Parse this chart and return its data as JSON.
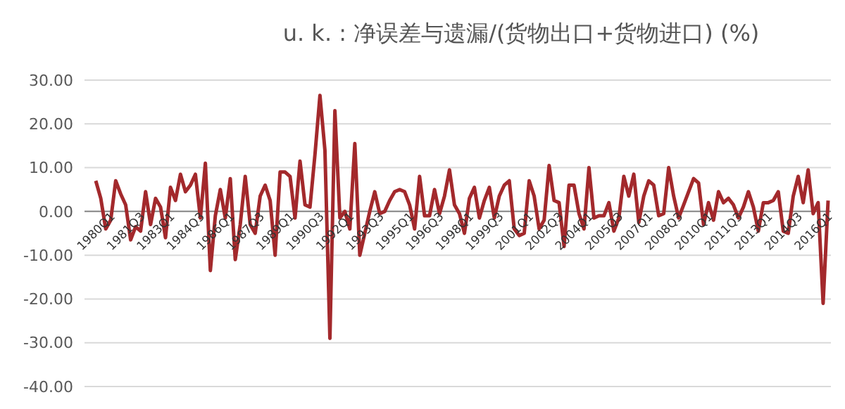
{
  "chart_data": {
    "type": "line",
    "title": "u. k. : 净误差与遗漏/(货物出口+货物进口) (%)",
    "categories": [
      "1980Q1",
      null,
      null,
      null,
      null,
      null,
      "1981Q3",
      null,
      null,
      null,
      null,
      null,
      "1983Q1",
      null,
      null,
      null,
      null,
      null,
      "1984Q3",
      null,
      null,
      null,
      null,
      null,
      "1986Q1",
      null,
      null,
      null,
      null,
      null,
      "1987Q3",
      null,
      null,
      null,
      null,
      null,
      "1989Q1",
      null,
      null,
      null,
      null,
      null,
      "1990Q3",
      null,
      null,
      null,
      null,
      null,
      "1992Q1",
      null,
      null,
      null,
      null,
      null,
      "1993Q3",
      null,
      null,
      null,
      null,
      null,
      "1995Q1",
      null,
      null,
      null,
      null,
      null,
      "1996Q3",
      null,
      null,
      null,
      null,
      null,
      "1998Q1",
      null,
      null,
      null,
      null,
      null,
      "1999Q3",
      null,
      null,
      null,
      null,
      null,
      "2001Q1",
      null,
      null,
      null,
      null,
      null,
      "2002Q3",
      null,
      null,
      null,
      null,
      null,
      "2004Q1",
      null,
      null,
      null,
      null,
      null,
      "2005Q3",
      null,
      null,
      null,
      null,
      null,
      "2007Q1",
      null,
      null,
      null,
      null,
      null,
      "2008Q3",
      null,
      null,
      null,
      null,
      null,
      "2010Q1",
      null,
      null,
      null,
      null,
      null,
      "2011Q3",
      null,
      null,
      null,
      null,
      null,
      "2013Q1",
      null,
      null,
      null,
      null,
      null,
      "2014Q3",
      null,
      null,
      null,
      null,
      null,
      "2016Q1",
      null,
      null,
      null
    ],
    "series": [
      {
        "color": "#a3292c",
        "values": [
          7,
          3,
          -4,
          -2,
          7,
          4,
          1.5,
          -6.5,
          -3.5,
          -4.5,
          4.5,
          -3,
          3,
          1,
          -6,
          5.5,
          2.5,
          8.5,
          4.5,
          6,
          8.5,
          -1.5,
          11,
          -13.5,
          -1,
          5,
          -1.5,
          7.5,
          -11,
          -3,
          8,
          -3,
          -5,
          3.5,
          6,
          2.5,
          -10,
          9,
          9,
          8,
          -1.5,
          11.5,
          1.5,
          1,
          13,
          26.5,
          14,
          -29,
          23,
          -1.5,
          0,
          -4,
          15.5,
          -10,
          -5,
          0,
          4.5,
          -0.5,
          0,
          2.5,
          4.5,
          5,
          4.5,
          1.5,
          -4,
          8,
          -1,
          -1,
          5,
          -0.5,
          3.5,
          9.5,
          1.5,
          -0.5,
          -5,
          3,
          5.5,
          -1.5,
          2.5,
          5.5,
          -1.5,
          3.5,
          6,
          7,
          -4,
          -5.5,
          -5,
          7,
          3.5,
          -4,
          -2,
          10.5,
          2.5,
          2,
          -8,
          6,
          6,
          -0.5,
          -4,
          10,
          -1.5,
          -1,
          -1,
          2,
          -4.5,
          -1.5,
          8,
          3.5,
          8.5,
          -2.5,
          3.5,
          7,
          6,
          -1,
          -0.5,
          10,
          3.5,
          -1.5,
          1.5,
          4.5,
          7.5,
          6.5,
          -3,
          2,
          -2,
          4.5,
          2,
          3,
          1.5,
          -1.5,
          1,
          4.5,
          1,
          -4.5,
          2,
          2,
          2.5,
          4.5,
          -4.5,
          -5,
          3.5,
          8,
          2,
          9.5,
          -0.5,
          2,
          -21,
          2.5
        ]
      }
    ],
    "ylim": [
      -40,
      30
    ],
    "yticks": [
      {
        "value": -40,
        "label": "-40.00"
      },
      {
        "value": -30,
        "label": "-30.00"
      },
      {
        "value": -20,
        "label": "-20.00"
      },
      {
        "value": -10,
        "label": "-10.00"
      },
      {
        "value": 0,
        "label": "0.00"
      },
      {
        "value": 10,
        "label": "10.00"
      },
      {
        "value": 20,
        "label": "20.00"
      },
      {
        "value": 30,
        "label": "30.00"
      }
    ],
    "grid": "y",
    "marker": "none",
    "line_style": "solid"
  }
}
